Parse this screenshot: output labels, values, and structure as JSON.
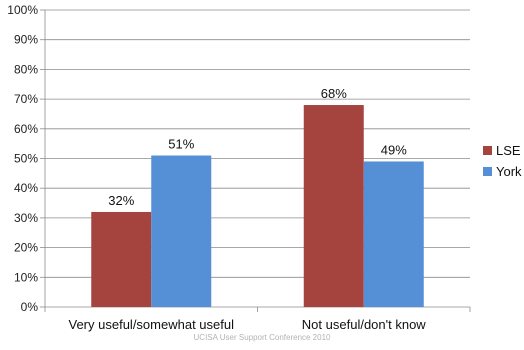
{
  "chart_data": {
    "type": "bar",
    "categories": [
      "Very useful/somewhat useful",
      "Not useful/don't know"
    ],
    "series": [
      {
        "name": "LSE",
        "values": [
          32,
          68
        ],
        "labels": [
          "32%",
          "68%"
        ],
        "color": "#a5443f"
      },
      {
        "name": "York",
        "values": [
          51,
          49
        ],
        "labels": [
          "51%",
          "49%"
        ],
        "color": "#5590d6"
      }
    ],
    "ylim": [
      0,
      100
    ],
    "yticks": [
      "0%",
      "10%",
      "20%",
      "30%",
      "40%",
      "50%",
      "60%",
      "70%",
      "80%",
      "90%",
      "100%"
    ],
    "grid": true,
    "legend_position": "right"
  },
  "footer": "UCISA User Support Conference 2010"
}
